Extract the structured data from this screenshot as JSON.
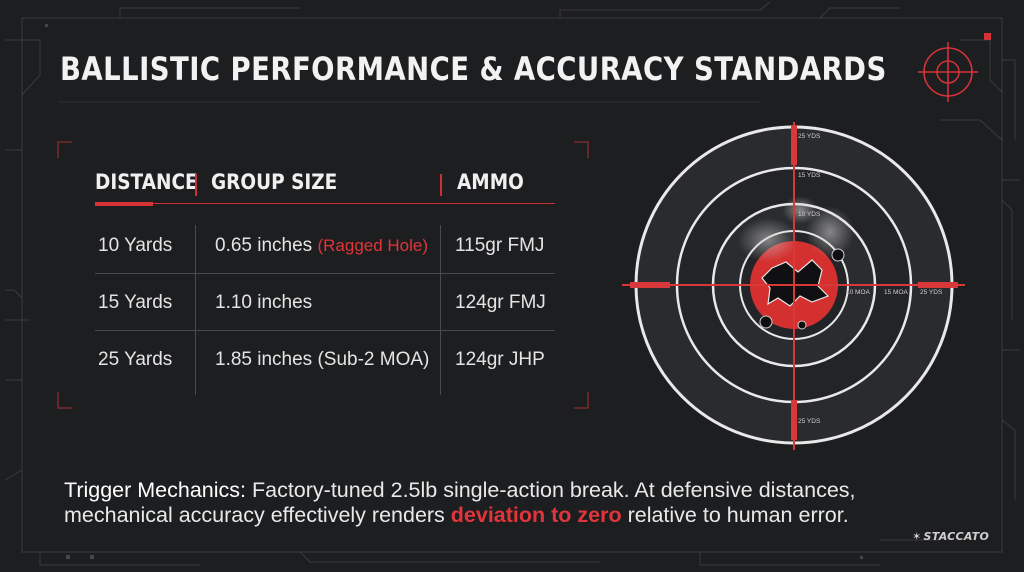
{
  "title": "BALLISTIC PERFORMANCE & ACCURACY STANDARDS",
  "table": {
    "headers": [
      "DISTANCE",
      "GROUP SIZE",
      "AMMO"
    ],
    "rows": [
      {
        "distance": "10 Yards",
        "group": "0.65 inches",
        "note": "(Ragged Hole)",
        "ammo": "115gr FMJ"
      },
      {
        "distance": "15 Yards",
        "group": "1.10 inches",
        "note": "",
        "ammo": "124gr FMJ"
      },
      {
        "distance": "25 Yards",
        "group": "1.85 inches (Sub-2 MOA)",
        "note": "",
        "ammo": "124gr JHP"
      }
    ]
  },
  "target": {
    "labels": {
      "top_outer": "25 YDS",
      "top_mid": "15 YDS",
      "top_inner": "10 YDS",
      "right_inner": "10 MOA",
      "right_mid": "15 MOA",
      "right_outer": "25 YDS",
      "bottom_outer": "25 YDS"
    }
  },
  "trigger": {
    "label": "Trigger Mechanics:",
    "text_1": " Factory-tuned 2.5lb single-action break. At defensive distances,",
    "text_2": "mechanical accuracy effectively renders ",
    "highlight": "deviation to zero",
    "text_3": " relative to human error."
  },
  "brand": {
    "logo": "STACCATO"
  },
  "colors": {
    "accent_red": "#e0353a",
    "background": "#1d1e20"
  }
}
